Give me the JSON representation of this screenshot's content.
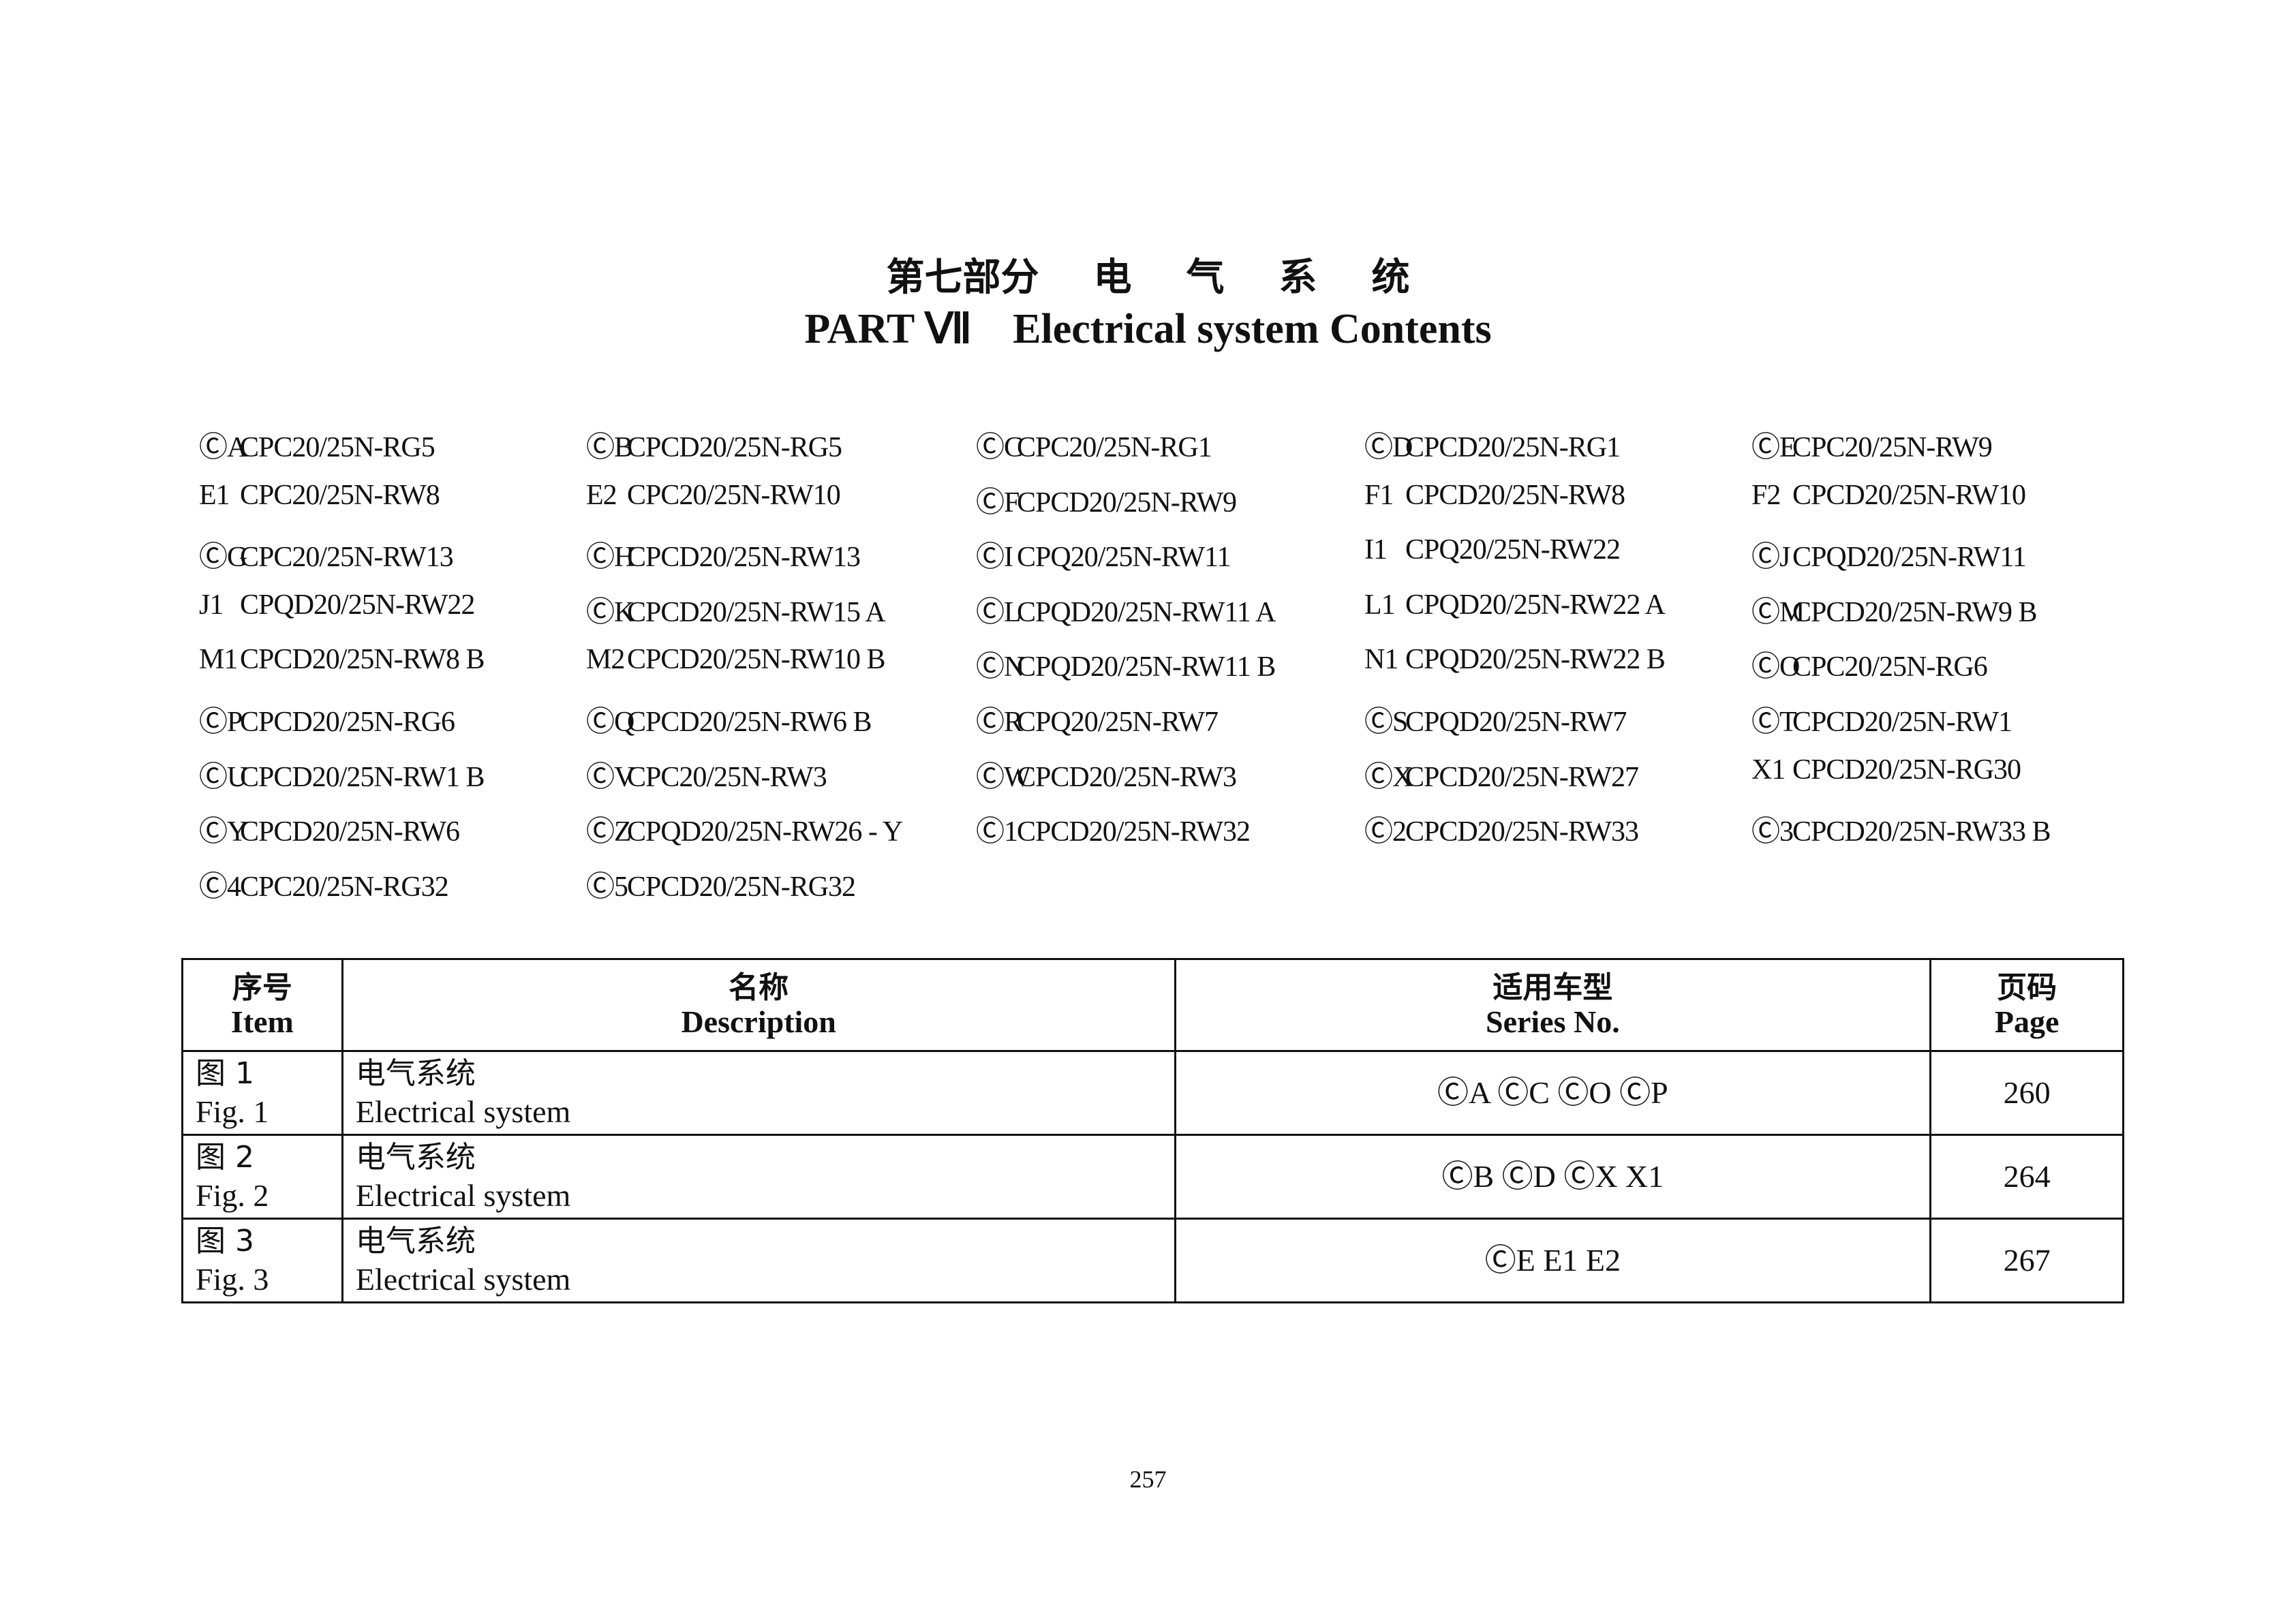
{
  "title": {
    "cn_part": "第七部分",
    "cn_words": [
      "电",
      "气",
      "系",
      "统"
    ],
    "en_part": "PART Ⅶ",
    "en_title": "Electrical system Contents"
  },
  "models": [
    {
      "mark": "ⒸA",
      "name": "CPC20/25N-RG5"
    },
    {
      "mark": "ⒸB",
      "name": "CPCD20/25N-RG5"
    },
    {
      "mark": "ⒸC",
      "name": "CPC20/25N-RG1"
    },
    {
      "mark": "ⒸD",
      "name": "CPCD20/25N-RG1"
    },
    {
      "mark": "ⒸE",
      "name": "CPC20/25N-RW9"
    },
    {
      "mark": "E1",
      "name": "CPC20/25N-RW8"
    },
    {
      "mark": "E2",
      "name": "CPC20/25N-RW10"
    },
    {
      "mark": "ⒸF",
      "name": "CPCD20/25N-RW9"
    },
    {
      "mark": "F1",
      "name": "CPCD20/25N-RW8"
    },
    {
      "mark": "F2",
      "name": "CPCD20/25N-RW10"
    },
    {
      "mark": "ⒸG",
      "name": "CPC20/25N-RW13"
    },
    {
      "mark": "ⒸH",
      "name": "CPCD20/25N-RW13"
    },
    {
      "mark": "ⒸI",
      "name": "CPQ20/25N-RW11"
    },
    {
      "mark": "I1",
      "name": "CPQ20/25N-RW22"
    },
    {
      "mark": "ⒸJ",
      "name": "CPQD20/25N-RW11"
    },
    {
      "mark": "J1",
      "name": "CPQD20/25N-RW22"
    },
    {
      "mark": "ⒸK",
      "name": "CPCD20/25N-RW15 A"
    },
    {
      "mark": "ⒸL",
      "name": "CPQD20/25N-RW11 A"
    },
    {
      "mark": "L1",
      "name": "CPQD20/25N-RW22 A"
    },
    {
      "mark": "ⒸM",
      "name": "CPCD20/25N-RW9 B"
    },
    {
      "mark": "M1",
      "name": "CPCD20/25N-RW8 B"
    },
    {
      "mark": "M2",
      "name": "CPCD20/25N-RW10 B"
    },
    {
      "mark": "ⒸN",
      "name": "CPQD20/25N-RW11 B"
    },
    {
      "mark": "N1",
      "name": "CPQD20/25N-RW22 B"
    },
    {
      "mark": "ⒸO",
      "name": "CPC20/25N-RG6"
    },
    {
      "mark": "ⒸP",
      "name": "CPCD20/25N-RG6"
    },
    {
      "mark": "ⒸQ",
      "name": "CPCD20/25N-RW6 B"
    },
    {
      "mark": "ⒸR",
      "name": "CPQ20/25N-RW7"
    },
    {
      "mark": "ⒸS",
      "name": "CPQD20/25N-RW7"
    },
    {
      "mark": "ⒸT",
      "name": "CPCD20/25N-RW1"
    },
    {
      "mark": "ⒸU",
      "name": "CPCD20/25N-RW1 B"
    },
    {
      "mark": "ⒸV",
      "name": "CPC20/25N-RW3"
    },
    {
      "mark": "ⒸW",
      "name": "CPCD20/25N-RW3"
    },
    {
      "mark": "ⒸX",
      "name": "CPCD20/25N-RW27"
    },
    {
      "mark": "X1",
      "name": "CPCD20/25N-RG30"
    },
    {
      "mark": "ⒸY",
      "name": "CPCD20/25N-RW6"
    },
    {
      "mark": "ⒸZ",
      "name": "CPQD20/25N-RW26 - Y"
    },
    {
      "mark": "Ⓒ1",
      "name": "CPCD20/25N-RW32"
    },
    {
      "mark": "Ⓒ2",
      "name": "CPCD20/25N-RW33"
    },
    {
      "mark": "Ⓒ3",
      "name": "CPCD20/25N-RW33 B"
    },
    {
      "mark": "Ⓒ4",
      "name": "CPC20/25N-RG32"
    },
    {
      "mark": "Ⓒ5",
      "name": "CPCD20/25N-RG32"
    }
  ],
  "table": {
    "headers": [
      {
        "cn": "序号",
        "en": "Item"
      },
      {
        "cn": "名称",
        "en": "Description"
      },
      {
        "cn": "适用车型",
        "en": "Series No."
      },
      {
        "cn": "页码",
        "en": "Page"
      }
    ],
    "rows": [
      {
        "item_cn": "图 1",
        "item_en": "Fig. 1",
        "desc_cn": "电气系统",
        "desc_en": "Electrical system",
        "series": "ⒸA ⒸC ⒸO ⒸP",
        "page": "260"
      },
      {
        "item_cn": "图 2",
        "item_en": "Fig. 2",
        "desc_cn": "电气系统",
        "desc_en": "Electrical system",
        "series": "ⒸB ⒸD ⒸX X1",
        "page": "264"
      },
      {
        "item_cn": "图 3",
        "item_en": "Fig. 3",
        "desc_cn": "电气系统",
        "desc_en": "Electrical system",
        "series": "ⒸE E1 E2",
        "page": "267"
      }
    ]
  },
  "page_number": "257"
}
